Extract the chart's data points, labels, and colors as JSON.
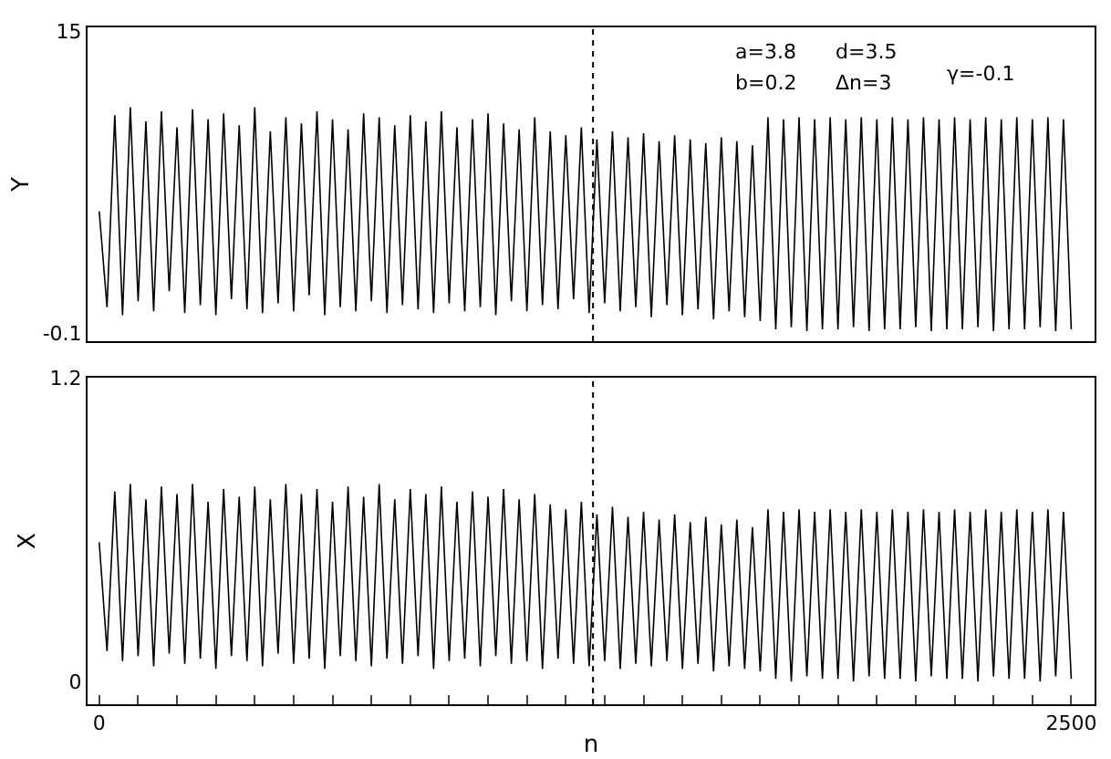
{
  "chart_data": [
    {
      "type": "line",
      "ylabel": "Y",
      "xlim": [
        -30,
        2560
      ],
      "ylim": [
        -0.5,
        15.2
      ],
      "yticks": [
        -0.1,
        15
      ],
      "tick_labels": "y",
      "grid": false,
      "marker": "none",
      "line_style": "solid",
      "annotations": [
        "a=3.8",
        "d=3.5",
        "b=0.2",
        "Δn=3",
        "γ=-0.1"
      ],
      "ref_lines": [
        {
          "axis": "x",
          "value": 1270,
          "line_style": "dotted",
          "color": "#000000"
        }
      ],
      "x": [
        0,
        20,
        40,
        60,
        80,
        100,
        120,
        140,
        160,
        180,
        200,
        220,
        240,
        260,
        280,
        300,
        320,
        340,
        360,
        380,
        400,
        420,
        440,
        460,
        480,
        500,
        520,
        540,
        560,
        580,
        600,
        620,
        640,
        660,
        680,
        700,
        720,
        740,
        760,
        780,
        800,
        820,
        840,
        860,
        880,
        900,
        920,
        940,
        960,
        980,
        1000,
        1020,
        1040,
        1060,
        1080,
        1100,
        1120,
        1140,
        1160,
        1180,
        1200,
        1220,
        1240,
        1260,
        1280,
        1300,
        1320,
        1340,
        1360,
        1380,
        1400,
        1420,
        1440,
        1460,
        1480,
        1500,
        1520,
        1540,
        1560,
        1580,
        1600,
        1620,
        1640,
        1660,
        1680,
        1700,
        1720,
        1740,
        1760,
        1780,
        1800,
        1820,
        1840,
        1860,
        1880,
        1900,
        1920,
        1940,
        1960,
        1980,
        2000,
        2020,
        2040,
        2060,
        2080,
        2100,
        2120,
        2140,
        2160,
        2180,
        2200,
        2220,
        2240,
        2260,
        2280,
        2300,
        2320,
        2340,
        2360,
        2380,
        2400,
        2420,
        2440,
        2460,
        2480,
        2500
      ],
      "series": [
        {
          "color": "#000000",
          "values": [
            6,
            1.2,
            10.8,
            0.8,
            11.2,
            1.5,
            10.5,
            1.0,
            11.0,
            2.0,
            10.2,
            0.9,
            11.1,
            1.3,
            10.6,
            0.8,
            10.9,
            1.6,
            10.3,
            1.1,
            11.2,
            0.9,
            10.0,
            1.4,
            10.7,
            1.0,
            10.4,
            1.8,
            11.0,
            0.8,
            10.6,
            1.2,
            10.1,
            1.0,
            10.9,
            1.5,
            10.7,
            0.9,
            10.3,
            1.3,
            10.8,
            1.1,
            10.5,
            0.9,
            11.0,
            1.4,
            10.2,
            1.0,
            10.6,
            1.2,
            10.9,
            0.8,
            10.4,
            1.5,
            10.1,
            1.0,
            10.7,
            1.3,
            10.0,
            1.1,
            9.8,
            1.6,
            10.2,
            0.9,
            9.6,
            1.4,
            10.0,
            1.0,
            9.7,
            1.2,
            9.9,
            0.7,
            9.5,
            1.3,
            9.8,
            0.8,
            9.6,
            1.1,
            9.4,
            0.6,
            9.7,
            1.0,
            9.5,
            0.7,
            9.3,
            0.5,
            10.7,
            0.1,
            10.6,
            0.2,
            10.7,
            0.0,
            10.6,
            0.1,
            10.7,
            0.1,
            10.6,
            0.2,
            10.7,
            0.0,
            10.6,
            0.1,
            10.7,
            0.1,
            10.6,
            0.2,
            10.7,
            0.0,
            10.6,
            0.1,
            10.7,
            0.1,
            10.6,
            0.2,
            10.7,
            0.0,
            10.6,
            0.1,
            10.7,
            0.1,
            10.6,
            0.2,
            10.7,
            0.0,
            10.6,
            0.1
          ]
        }
      ]
    },
    {
      "type": "line",
      "ylabel": "X",
      "xlabel": "n",
      "xlim": [
        -30,
        2560
      ],
      "ylim": [
        -0.09,
        1.2
      ],
      "yticks": [
        0,
        1.2
      ],
      "grid": false,
      "marker": "none",
      "line_style": "solid",
      "xticks": [
        0,
        {
          "value": 100,
          "label": null
        },
        {
          "value": 200,
          "label": null
        },
        {
          "value": 300,
          "label": null
        },
        {
          "value": 400,
          "label": null
        },
        {
          "value": 500,
          "label": null
        },
        {
          "value": 600,
          "label": null
        },
        {
          "value": 700,
          "label": null
        },
        {
          "value": 800,
          "label": null
        },
        {
          "value": 900,
          "label": null
        },
        {
          "value": 1000,
          "label": null
        },
        {
          "value": 1100,
          "label": null
        },
        {
          "value": 1200,
          "label": null
        },
        {
          "value": 1300,
          "label": null
        },
        {
          "value": 1400,
          "label": null
        },
        {
          "value": 1500,
          "label": null
        },
        {
          "value": 1600,
          "label": null
        },
        {
          "value": 1700,
          "label": null
        },
        {
          "value": 1800,
          "label": null
        },
        {
          "value": 1900,
          "label": null
        },
        {
          "value": 2000,
          "label": null
        },
        {
          "value": 2100,
          "label": null
        },
        {
          "value": 2200,
          "label": null
        },
        {
          "value": 2300,
          "label": null
        },
        {
          "value": 2400,
          "label": null
        },
        2500
      ],
      "ref_lines": [
        {
          "axis": "x",
          "value": 1270,
          "line_style": "dotted",
          "color": "#000000"
        }
      ],
      "x": [
        0,
        20,
        40,
        60,
        80,
        100,
        120,
        140,
        160,
        180,
        200,
        220,
        240,
        260,
        280,
        300,
        320,
        340,
        360,
        380,
        400,
        420,
        440,
        460,
        480,
        500,
        520,
        540,
        560,
        580,
        600,
        620,
        640,
        660,
        680,
        700,
        720,
        740,
        760,
        780,
        800,
        820,
        840,
        860,
        880,
        900,
        920,
        940,
        960,
        980,
        1000,
        1020,
        1040,
        1060,
        1080,
        1100,
        1120,
        1140,
        1160,
        1180,
        1200,
        1220,
        1240,
        1260,
        1280,
        1300,
        1320,
        1340,
        1360,
        1380,
        1400,
        1420,
        1440,
        1460,
        1480,
        1500,
        1520,
        1540,
        1560,
        1580,
        1600,
        1620,
        1640,
        1660,
        1680,
        1700,
        1720,
        1740,
        1760,
        1780,
        1800,
        1820,
        1840,
        1860,
        1880,
        1900,
        1920,
        1940,
        1960,
        1980,
        2000,
        2020,
        2040,
        2060,
        2080,
        2100,
        2120,
        2140,
        2160,
        2180,
        2200,
        2220,
        2240,
        2260,
        2280,
        2300,
        2320,
        2340,
        2360,
        2380,
        2400,
        2420,
        2440,
        2460,
        2480,
        2500
      ],
      "series": [
        {
          "color": "#000000",
          "values": [
            0.55,
            0.12,
            0.75,
            0.08,
            0.78,
            0.1,
            0.72,
            0.06,
            0.77,
            0.11,
            0.74,
            0.07,
            0.78,
            0.09,
            0.71,
            0.05,
            0.76,
            0.1,
            0.73,
            0.08,
            0.77,
            0.06,
            0.72,
            0.11,
            0.78,
            0.07,
            0.74,
            0.09,
            0.76,
            0.05,
            0.71,
            0.1,
            0.77,
            0.08,
            0.73,
            0.06,
            0.78,
            0.09,
            0.72,
            0.07,
            0.76,
            0.1,
            0.74,
            0.05,
            0.77,
            0.08,
            0.71,
            0.09,
            0.75,
            0.06,
            0.73,
            0.1,
            0.76,
            0.07,
            0.72,
            0.08,
            0.74,
            0.05,
            0.7,
            0.09,
            0.68,
            0.07,
            0.71,
            0.06,
            0.66,
            0.08,
            0.69,
            0.05,
            0.65,
            0.07,
            0.67,
            0.06,
            0.64,
            0.08,
            0.66,
            0.05,
            0.63,
            0.07,
            0.65,
            0.04,
            0.62,
            0.06,
            0.64,
            0.05,
            0.61,
            0.04,
            0.68,
            0.01,
            0.67,
            0.0,
            0.68,
            0.02,
            0.67,
            0.01,
            0.68,
            0.01,
            0.67,
            0.0,
            0.68,
            0.02,
            0.67,
            0.01,
            0.68,
            0.01,
            0.67,
            0.0,
            0.68,
            0.02,
            0.67,
            0.01,
            0.68,
            0.01,
            0.67,
            0.0,
            0.68,
            0.02,
            0.67,
            0.01,
            0.68,
            0.01,
            0.67,
            0.0,
            0.68,
            0.02,
            0.67,
            0.01
          ]
        }
      ]
    }
  ]
}
